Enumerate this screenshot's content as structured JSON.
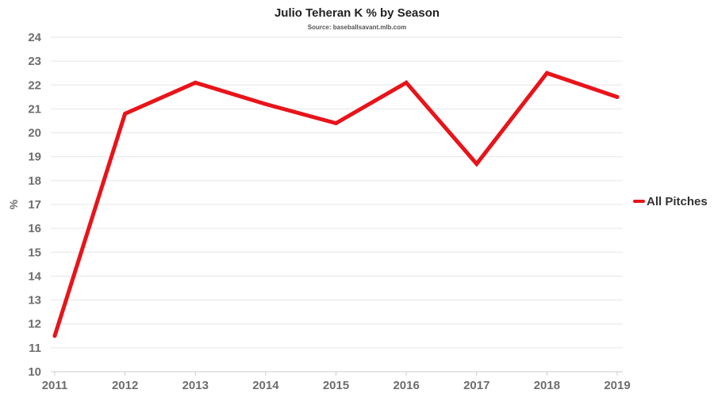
{
  "chart_data": {
    "type": "line",
    "title": "Julio Teheran K % by Season",
    "subtitle": "Source: baseballsavant.mlb.com",
    "xlabel": "",
    "ylabel": "%",
    "x": [
      "2011",
      "2012",
      "2013",
      "2014",
      "2015",
      "2016",
      "2017",
      "2018",
      "2019"
    ],
    "ylim": [
      10,
      24
    ],
    "yticks": [
      10,
      11,
      12,
      13,
      14,
      15,
      16,
      17,
      18,
      19,
      20,
      21,
      22,
      23,
      24
    ],
    "grid": true,
    "legend_position": "right",
    "series": [
      {
        "name": "All Pitches",
        "color": "#e8141a",
        "values": [
          11.5,
          20.8,
          22.1,
          21.2,
          20.4,
          22.1,
          18.7,
          22.5,
          21.5
        ]
      }
    ]
  }
}
